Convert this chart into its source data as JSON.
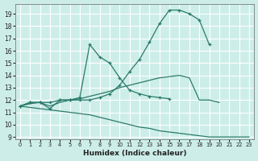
{
  "bg_color": "#cdeee8",
  "grid_color": "#aaddcc",
  "line_color": "#2a7a6a",
  "xlabel": "Humidex (Indice chaleur)",
  "xlim": [
    -0.5,
    23.5
  ],
  "ylim": [
    8.8,
    19.8
  ],
  "xticks": [
    0,
    1,
    2,
    3,
    4,
    5,
    6,
    7,
    8,
    9,
    10,
    11,
    12,
    13,
    14,
    15,
    16,
    17,
    18,
    19,
    20,
    21,
    22,
    23
  ],
  "yticks": [
    9,
    10,
    11,
    12,
    13,
    14,
    15,
    16,
    17,
    18,
    19
  ],
  "lines": [
    {
      "x": [
        0,
        1,
        2,
        3,
        4,
        5,
        6,
        7,
        8,
        9,
        10,
        11,
        12,
        13,
        14,
        15,
        16,
        17,
        18,
        19
      ],
      "y": [
        11.5,
        11.8,
        11.8,
        11.8,
        12.0,
        12.0,
        12.0,
        12.0,
        12.2,
        12.5,
        13.2,
        14.3,
        15.3,
        16.7,
        18.2,
        19.3,
        19.3,
        19.0,
        18.5,
        16.5
      ],
      "marker": "+",
      "linestyle": "-"
    },
    {
      "x": [
        0,
        1,
        2,
        3,
        4,
        5,
        6,
        7,
        8,
        9,
        10,
        11,
        12,
        13,
        14,
        15
      ],
      "y": [
        11.5,
        11.8,
        11.8,
        11.3,
        12.0,
        12.0,
        12.2,
        16.5,
        15.5,
        15.0,
        13.8,
        12.8,
        12.5,
        12.3,
        12.2,
        12.1
      ],
      "marker": "+",
      "linestyle": "-"
    },
    {
      "x": [
        0,
        1,
        2,
        3,
        4,
        5,
        6,
        7,
        8,
        9,
        10,
        11,
        12,
        13,
        14,
        15,
        16,
        17,
        18,
        19,
        20,
        21,
        22,
        23
      ],
      "y": [
        11.5,
        11.7,
        11.8,
        11.5,
        11.8,
        12.0,
        12.1,
        12.3,
        12.5,
        12.7,
        13.0,
        13.2,
        13.4,
        13.6,
        13.8,
        13.9,
        14.0,
        13.8,
        12.0,
        12.0,
        11.8,
        null,
        null,
        null
      ],
      "marker": null,
      "linestyle": "-"
    },
    {
      "x": [
        0,
        1,
        2,
        3,
        4,
        5,
        6,
        7,
        8,
        9,
        10,
        11,
        12,
        13,
        14,
        15,
        16,
        17,
        18,
        19,
        20,
        21,
        22,
        23
      ],
      "y": [
        11.5,
        11.4,
        11.3,
        11.2,
        11.1,
        11.0,
        10.9,
        10.8,
        10.6,
        10.4,
        10.2,
        10.0,
        9.8,
        9.7,
        9.5,
        9.4,
        9.3,
        9.2,
        9.1,
        9.0,
        9.0,
        9.0,
        9.0,
        9.0
      ],
      "marker": null,
      "linestyle": "-"
    }
  ]
}
